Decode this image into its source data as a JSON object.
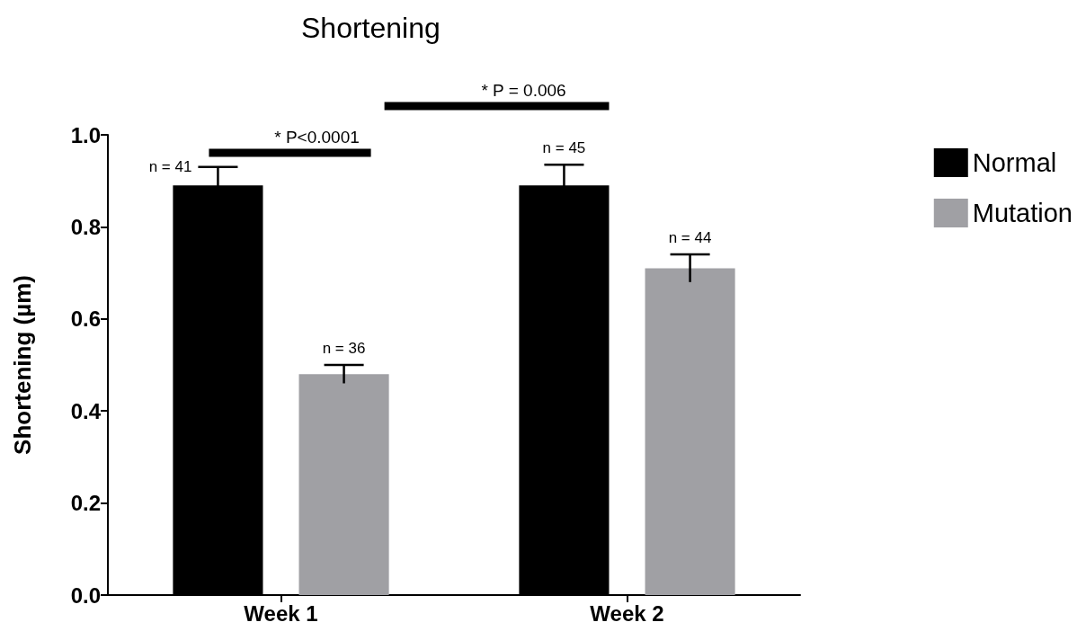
{
  "chart_data": {
    "type": "bar",
    "title": "Shortening",
    "ylabel": "Shortening (µm)",
    "categories": [
      "Week 1",
      "Week 2"
    ],
    "series": [
      {
        "name": "Normal",
        "color": "#000000",
        "values": [
          0.89,
          0.89
        ],
        "errors": [
          0.04,
          0.045
        ]
      },
      {
        "name": "Mutation",
        "color": "#a0a0a4",
        "values": [
          0.48,
          0.71
        ],
        "errors": [
          0.02,
          0.03
        ]
      }
    ],
    "ylim": [
      0,
      1
    ],
    "yticks": [
      {
        "value": 0,
        "label": "0.0"
      },
      {
        "value": 0.2,
        "label": "0.2"
      },
      {
        "value": 0.4,
        "label": "0.4"
      },
      {
        "value": 0.6,
        "label": "0.6"
      },
      {
        "value": 0.8,
        "label": "0.8"
      },
      {
        "value": 1,
        "label": "1.0"
      }
    ],
    "annotations": [
      "n = 41",
      "n = 36",
      "n = 45",
      "n = 44",
      "* P<0.0001",
      "* P = 0.006"
    ],
    "legend": "right",
    "grid": false
  }
}
